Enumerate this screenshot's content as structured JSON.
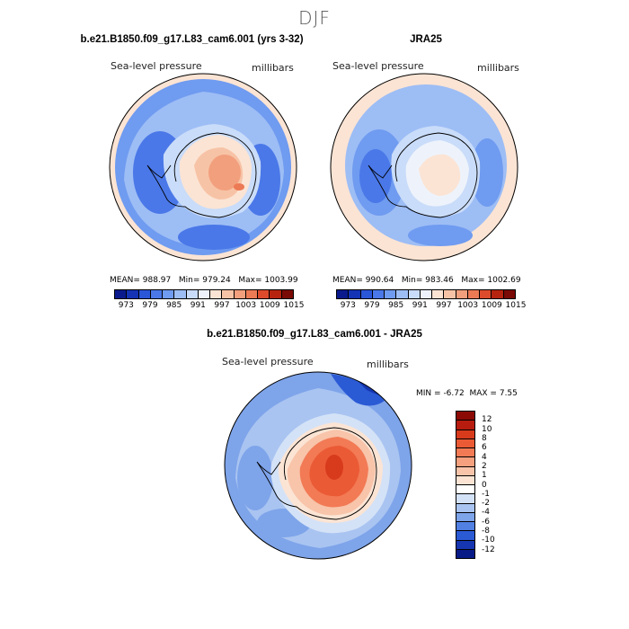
{
  "figure": {
    "season": "DJF"
  },
  "chart_data": [
    {
      "type": "heatmap",
      "title": "b.e21.B1850.f09_g17.L83_cam6.001 (yrs 3-32)",
      "left_label": "Sea-level pressure",
      "right_label": "millibars",
      "stats": {
        "mean": "988.97",
        "min": "979.24",
        "max": "1003.99"
      },
      "levels": [
        "973",
        "979",
        "985",
        "991",
        "997",
        "1003",
        "1009",
        "1015"
      ],
      "palette": [
        "#0a1a8c",
        "#1433b5",
        "#2a56d8",
        "#4a78e8",
        "#6f9bf0",
        "#9dbdf5",
        "#c9dcf9",
        "#eef3fb",
        "#fbe4d4",
        "#f7c3a6",
        "#f29f7d",
        "#ec7a55",
        "#dc4b2c",
        "#b6240f",
        "#7a0a05"
      ]
    },
    {
      "type": "heatmap",
      "title": "JRA25",
      "left_label": "Sea-level pressure",
      "right_label": "millibars",
      "stats": {
        "mean": "990.64",
        "min": "983.46",
        "max": "1002.69"
      },
      "levels": [
        "973",
        "979",
        "985",
        "991",
        "997",
        "1003",
        "1009",
        "1015"
      ],
      "palette": [
        "#0a1a8c",
        "#1433b5",
        "#2a56d8",
        "#4a78e8",
        "#6f9bf0",
        "#9dbdf5",
        "#c9dcf9",
        "#eef3fb",
        "#fbe4d4",
        "#f7c3a6",
        "#f29f7d",
        "#ec7a55",
        "#dc4b2c",
        "#b6240f",
        "#7a0a05"
      ]
    },
    {
      "type": "heatmap",
      "title": "b.e21.B1850.f09_g17.L83_cam6.001 - JRA25",
      "left_label": "Sea-level pressure",
      "right_label": "millibars",
      "stats": {
        "min_label": "MIN =",
        "min": "-6.72",
        "max_label": "MAX =",
        "max": "7.55"
      },
      "levels": [
        "12",
        "10",
        "8",
        "6",
        "4",
        "2",
        "1",
        "0",
        "-1",
        "-2",
        "-4",
        "-6",
        "-8",
        "-10",
        "-12"
      ],
      "palette": [
        "#8c0a05",
        "#b71c0e",
        "#d83a1c",
        "#ea5a35",
        "#f27a55",
        "#f5a07e",
        "#f8c4aa",
        "#fbe4d4",
        "#ffffff",
        "#d4e2f7",
        "#a9c4f1",
        "#7ea4ea",
        "#5180e2",
        "#2b5ad5",
        "#1536b0",
        "#081a86"
      ]
    }
  ]
}
